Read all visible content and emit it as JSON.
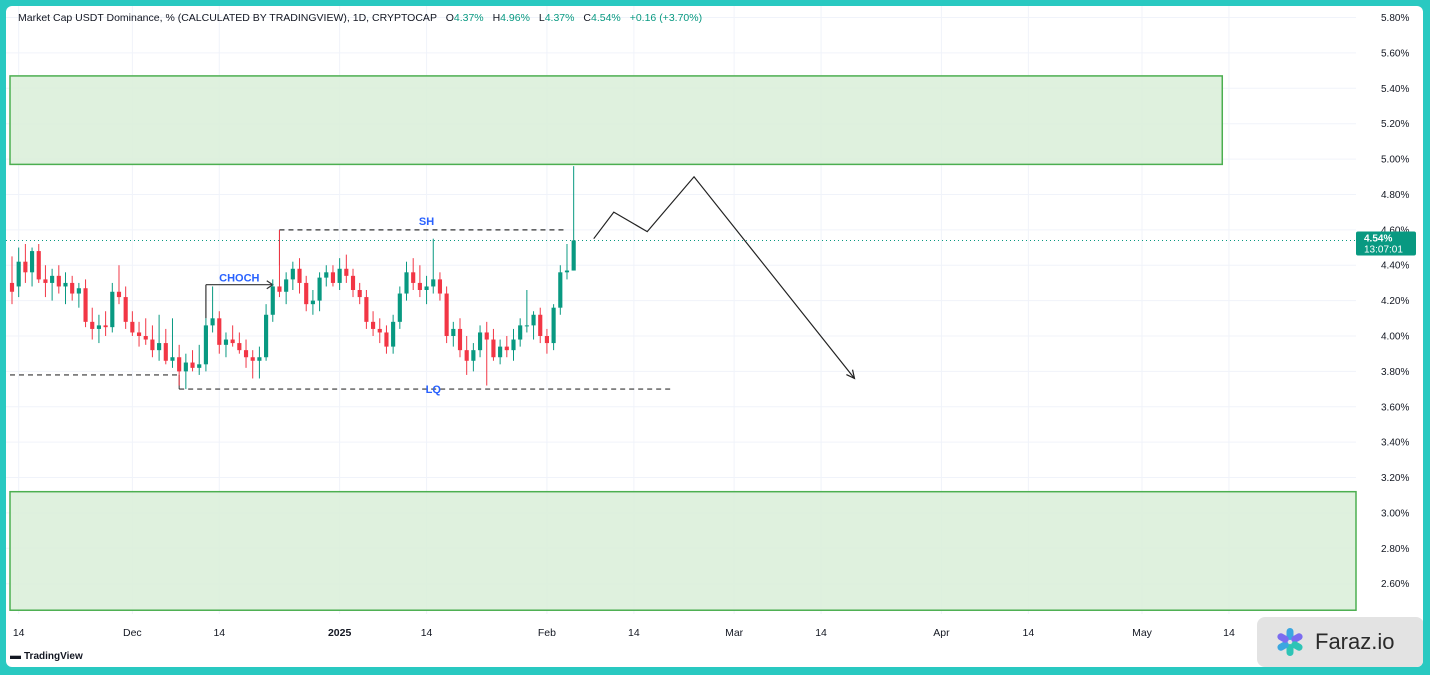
{
  "legend": {
    "symbol": "Market Cap USDT Dominance, % (CALCULATED BY TRADINGVIEW), 1D, CRYPTOCAP",
    "o_label": "O",
    "o": "4.37%",
    "h_label": "H",
    "h": "4.96%",
    "l_label": "L",
    "l": "4.37%",
    "c_label": "C",
    "c": "4.54%",
    "change": "+0.16 (+3.70%)"
  },
  "price_tag": {
    "value": "4.54%",
    "countdown": "13:07:01"
  },
  "branding": {
    "tradingview": "TradingView",
    "watermark": "Faraz.io"
  },
  "colors": {
    "up": "#089981",
    "down": "#f23645",
    "zone_fill": "#d9eed8",
    "zone_border": "#4caf50",
    "label_blue": "#2962ff"
  },
  "chart_data": {
    "type": "candlestick",
    "y_axis": {
      "min": 2.44,
      "max": 5.82,
      "unit": "%",
      "ticks": [
        "5.80%",
        "5.60%",
        "5.40%",
        "5.20%",
        "5.00%",
        "4.80%",
        "4.60%",
        "4.40%",
        "4.20%",
        "4.00%",
        "3.80%",
        "3.60%",
        "3.40%",
        "3.20%",
        "3.00%",
        "2.80%",
        "2.60%"
      ]
    },
    "x_axis": {
      "labels": [
        {
          "text": "14",
          "date": "2024-11-14"
        },
        {
          "text": "Dec",
          "date": "2024-12-01"
        },
        {
          "text": "14",
          "date": "2024-12-14"
        },
        {
          "text": "2025",
          "date": "2025-01-01"
        },
        {
          "text": "14",
          "date": "2025-01-14"
        },
        {
          "text": "Feb",
          "date": "2025-02-01"
        },
        {
          "text": "14",
          "date": "2025-02-14"
        },
        {
          "text": "Mar",
          "date": "2025-03-01"
        },
        {
          "text": "14",
          "date": "2025-03-14"
        },
        {
          "text": "Apr",
          "date": "2025-04-01"
        },
        {
          "text": "14",
          "date": "2025-04-14"
        },
        {
          "text": "May",
          "date": "2025-05-01"
        },
        {
          "text": "14",
          "date": "2025-05-14"
        }
      ],
      "start": "2024-11-13",
      "end": "2025-06-02"
    },
    "last_price": 4.54,
    "candles": [
      {
        "d": "2024-11-13",
        "o": 4.3,
        "h": 4.45,
        "l": 4.18,
        "c": 4.25
      },
      {
        "d": "2024-11-14",
        "o": 4.28,
        "h": 4.5,
        "l": 4.22,
        "c": 4.42
      },
      {
        "d": "2024-11-15",
        "o": 4.42,
        "h": 4.52,
        "l": 4.3,
        "c": 4.36
      },
      {
        "d": "2024-11-16",
        "o": 4.36,
        "h": 4.5,
        "l": 4.28,
        "c": 4.48
      },
      {
        "d": "2024-11-17",
        "o": 4.48,
        "h": 4.52,
        "l": 4.3,
        "c": 4.32
      },
      {
        "d": "2024-11-18",
        "o": 4.32,
        "h": 4.4,
        "l": 4.22,
        "c": 4.3
      },
      {
        "d": "2024-11-19",
        "o": 4.3,
        "h": 4.38,
        "l": 4.2,
        "c": 4.34
      },
      {
        "d": "2024-11-20",
        "o": 4.34,
        "h": 4.4,
        "l": 4.24,
        "c": 4.28
      },
      {
        "d": "2024-11-21",
        "o": 4.28,
        "h": 4.36,
        "l": 4.18,
        "c": 4.3
      },
      {
        "d": "2024-11-22",
        "o": 4.3,
        "h": 4.34,
        "l": 4.2,
        "c": 4.24
      },
      {
        "d": "2024-11-23",
        "o": 4.24,
        "h": 4.3,
        "l": 4.16,
        "c": 4.27
      },
      {
        "d": "2024-11-24",
        "o": 4.27,
        "h": 4.32,
        "l": 4.05,
        "c": 4.08
      },
      {
        "d": "2024-11-25",
        "o": 4.08,
        "h": 4.16,
        "l": 3.98,
        "c": 4.04
      },
      {
        "d": "2024-11-26",
        "o": 4.04,
        "h": 4.12,
        "l": 3.96,
        "c": 4.06
      },
      {
        "d": "2024-11-27",
        "o": 4.06,
        "h": 4.14,
        "l": 4.0,
        "c": 4.05
      },
      {
        "d": "2024-11-28",
        "o": 4.05,
        "h": 4.3,
        "l": 4.02,
        "c": 4.25
      },
      {
        "d": "2024-11-29",
        "o": 4.25,
        "h": 4.4,
        "l": 4.18,
        "c": 4.22
      },
      {
        "d": "2024-11-30",
        "o": 4.22,
        "h": 4.28,
        "l": 4.04,
        "c": 4.08
      },
      {
        "d": "2024-12-01",
        "o": 4.08,
        "h": 4.14,
        "l": 4.0,
        "c": 4.02
      },
      {
        "d": "2024-12-02",
        "o": 4.02,
        "h": 4.08,
        "l": 3.94,
        "c": 4.0
      },
      {
        "d": "2024-12-03",
        "o": 4.0,
        "h": 4.1,
        "l": 3.95,
        "c": 3.98
      },
      {
        "d": "2024-12-04",
        "o": 3.98,
        "h": 4.06,
        "l": 3.88,
        "c": 3.92
      },
      {
        "d": "2024-12-05",
        "o": 3.92,
        "h": 4.12,
        "l": 3.86,
        "c": 3.96
      },
      {
        "d": "2024-12-06",
        "o": 3.96,
        "h": 4.04,
        "l": 3.84,
        "c": 3.86
      },
      {
        "d": "2024-12-07",
        "o": 3.86,
        "h": 4.1,
        "l": 3.82,
        "c": 3.88
      },
      {
        "d": "2024-12-08",
        "o": 3.88,
        "h": 3.95,
        "l": 3.72,
        "c": 3.8
      },
      {
        "d": "2024-12-09",
        "o": 3.8,
        "h": 3.9,
        "l": 3.7,
        "c": 3.85
      },
      {
        "d": "2024-12-10",
        "o": 3.85,
        "h": 3.92,
        "l": 3.8,
        "c": 3.82
      },
      {
        "d": "2024-12-11",
        "o": 3.82,
        "h": 3.95,
        "l": 3.78,
        "c": 3.84
      },
      {
        "d": "2024-12-12",
        "o": 3.84,
        "h": 4.1,
        "l": 3.8,
        "c": 4.06
      },
      {
        "d": "2024-12-13",
        "o": 4.06,
        "h": 4.28,
        "l": 4.02,
        "c": 4.1
      },
      {
        "d": "2024-12-14",
        "o": 4.1,
        "h": 4.14,
        "l": 3.9,
        "c": 3.95
      },
      {
        "d": "2024-12-15",
        "o": 3.95,
        "h": 4.02,
        "l": 3.88,
        "c": 3.98
      },
      {
        "d": "2024-12-16",
        "o": 3.98,
        "h": 4.06,
        "l": 3.94,
        "c": 3.96
      },
      {
        "d": "2024-12-17",
        "o": 3.96,
        "h": 4.02,
        "l": 3.9,
        "c": 3.92
      },
      {
        "d": "2024-12-18",
        "o": 3.92,
        "h": 3.98,
        "l": 3.82,
        "c": 3.88
      },
      {
        "d": "2024-12-19",
        "o": 3.88,
        "h": 3.92,
        "l": 3.76,
        "c": 3.86
      },
      {
        "d": "2024-12-20",
        "o": 3.86,
        "h": 3.94,
        "l": 3.76,
        "c": 3.88
      },
      {
        "d": "2024-12-21",
        "o": 3.88,
        "h": 4.18,
        "l": 3.86,
        "c": 4.12
      },
      {
        "d": "2024-12-22",
        "o": 4.12,
        "h": 4.32,
        "l": 4.08,
        "c": 4.28
      },
      {
        "d": "2024-12-23",
        "o": 4.28,
        "h": 4.6,
        "l": 4.22,
        "c": 4.25
      },
      {
        "d": "2024-12-24",
        "o": 4.25,
        "h": 4.36,
        "l": 4.18,
        "c": 4.32
      },
      {
        "d": "2024-12-25",
        "o": 4.32,
        "h": 4.42,
        "l": 4.26,
        "c": 4.38
      },
      {
        "d": "2024-12-26",
        "o": 4.38,
        "h": 4.44,
        "l": 4.24,
        "c": 4.3
      },
      {
        "d": "2024-12-27",
        "o": 4.3,
        "h": 4.34,
        "l": 4.14,
        "c": 4.18
      },
      {
        "d": "2024-12-28",
        "o": 4.18,
        "h": 4.26,
        "l": 4.12,
        "c": 4.2
      },
      {
        "d": "2024-12-29",
        "o": 4.2,
        "h": 4.36,
        "l": 4.14,
        "c": 4.33
      },
      {
        "d": "2024-12-30",
        "o": 4.33,
        "h": 4.4,
        "l": 4.28,
        "c": 4.36
      },
      {
        "d": "2024-12-31",
        "o": 4.36,
        "h": 4.4,
        "l": 4.28,
        "c": 4.3
      },
      {
        "d": "2025-01-01",
        "o": 4.3,
        "h": 4.44,
        "l": 4.26,
        "c": 4.38
      },
      {
        "d": "2025-01-02",
        "o": 4.38,
        "h": 4.46,
        "l": 4.3,
        "c": 4.34
      },
      {
        "d": "2025-01-03",
        "o": 4.34,
        "h": 4.38,
        "l": 4.22,
        "c": 4.26
      },
      {
        "d": "2025-01-04",
        "o": 4.26,
        "h": 4.3,
        "l": 4.18,
        "c": 4.22
      },
      {
        "d": "2025-01-05",
        "o": 4.22,
        "h": 4.26,
        "l": 4.04,
        "c": 4.08
      },
      {
        "d": "2025-01-06",
        "o": 4.08,
        "h": 4.14,
        "l": 4.0,
        "c": 4.04
      },
      {
        "d": "2025-01-07",
        "o": 4.04,
        "h": 4.1,
        "l": 3.96,
        "c": 4.02
      },
      {
        "d": "2025-01-08",
        "o": 4.02,
        "h": 4.06,
        "l": 3.9,
        "c": 3.94
      },
      {
        "d": "2025-01-09",
        "o": 3.94,
        "h": 4.12,
        "l": 3.9,
        "c": 4.08
      },
      {
        "d": "2025-01-10",
        "o": 4.08,
        "h": 4.28,
        "l": 4.04,
        "c": 4.24
      },
      {
        "d": "2025-01-11",
        "o": 4.24,
        "h": 4.42,
        "l": 4.2,
        "c": 4.36
      },
      {
        "d": "2025-01-12",
        "o": 4.36,
        "h": 4.44,
        "l": 4.26,
        "c": 4.3
      },
      {
        "d": "2025-01-13",
        "o": 4.3,
        "h": 4.4,
        "l": 4.22,
        "c": 4.26
      },
      {
        "d": "2025-01-14",
        "o": 4.26,
        "h": 4.34,
        "l": 4.18,
        "c": 4.28
      },
      {
        "d": "2025-01-15",
        "o": 4.28,
        "h": 4.55,
        "l": 4.24,
        "c": 4.32
      },
      {
        "d": "2025-01-16",
        "o": 4.32,
        "h": 4.36,
        "l": 4.2,
        "c": 4.24
      },
      {
        "d": "2025-01-17",
        "o": 4.24,
        "h": 4.28,
        "l": 3.96,
        "c": 4.0
      },
      {
        "d": "2025-01-18",
        "o": 4.0,
        "h": 4.08,
        "l": 3.94,
        "c": 4.04
      },
      {
        "d": "2025-01-19",
        "o": 4.04,
        "h": 4.1,
        "l": 3.88,
        "c": 3.92
      },
      {
        "d": "2025-01-20",
        "o": 3.92,
        "h": 4.0,
        "l": 3.78,
        "c": 3.86
      },
      {
        "d": "2025-01-21",
        "o": 3.86,
        "h": 3.96,
        "l": 3.8,
        "c": 3.92
      },
      {
        "d": "2025-01-22",
        "o": 3.92,
        "h": 4.06,
        "l": 3.88,
        "c": 4.02
      },
      {
        "d": "2025-01-23",
        "o": 4.02,
        "h": 4.08,
        "l": 3.72,
        "c": 3.98
      },
      {
        "d": "2025-01-24",
        "o": 3.98,
        "h": 4.04,
        "l": 3.86,
        "c": 3.88
      },
      {
        "d": "2025-01-25",
        "o": 3.88,
        "h": 3.98,
        "l": 3.84,
        "c": 3.94
      },
      {
        "d": "2025-01-26",
        "o": 3.94,
        "h": 4.0,
        "l": 3.88,
        "c": 3.92
      },
      {
        "d": "2025-01-27",
        "o": 3.92,
        "h": 4.04,
        "l": 3.86,
        "c": 3.98
      },
      {
        "d": "2025-01-28",
        "o": 3.98,
        "h": 4.1,
        "l": 3.94,
        "c": 4.06
      },
      {
        "d": "2025-01-29",
        "o": 4.06,
        "h": 4.26,
        "l": 4.02,
        "c": 4.06
      },
      {
        "d": "2025-01-30",
        "o": 4.06,
        "h": 4.14,
        "l": 3.98,
        "c": 4.12
      },
      {
        "d": "2025-01-31",
        "o": 4.12,
        "h": 4.16,
        "l": 3.96,
        "c": 4.0
      },
      {
        "d": "2025-02-01",
        "o": 4.0,
        "h": 4.04,
        "l": 3.9,
        "c": 3.96
      },
      {
        "d": "2025-02-02",
        "o": 3.96,
        "h": 4.18,
        "l": 3.92,
        "c": 4.16
      },
      {
        "d": "2025-02-03",
        "o": 4.16,
        "h": 4.4,
        "l": 4.12,
        "c": 4.36
      },
      {
        "d": "2025-02-04",
        "o": 4.36,
        "h": 4.52,
        "l": 4.32,
        "c": 4.37
      },
      {
        "d": "2025-02-05",
        "o": 4.37,
        "h": 4.96,
        "l": 4.37,
        "c": 4.54
      }
    ]
  },
  "annotations": {
    "labels": [
      {
        "text": "SH",
        "color": "#2962ff",
        "date": "2025-01-14",
        "price": 4.65
      },
      {
        "text": "CHOCH",
        "color": "#2962ff",
        "date": "2024-12-17",
        "price": 4.33
      },
      {
        "text": "LQ",
        "color": "#2962ff",
        "date": "2025-01-15",
        "price": 3.7
      }
    ],
    "dashed_lines": [
      {
        "from": "2024-12-23",
        "to": "2025-02-04",
        "price": 4.6
      },
      {
        "from": "2024-11-11",
        "to": "2024-12-08",
        "price": 3.78
      },
      {
        "from": "2024-12-08",
        "to": "2025-02-20",
        "price": 3.7
      }
    ],
    "dashed_verticals": [
      {
        "date": "2024-12-23",
        "from": 4.6,
        "to": 4.4
      },
      {
        "date": "2024-12-08",
        "from": 3.78,
        "to": 3.7
      }
    ],
    "choch_arrow": {
      "from": "2024-12-12",
      "to": "2024-12-22",
      "price": 4.29,
      "vertical_from": 4.1
    },
    "projection_path": [
      {
        "date": "2025-02-08",
        "price": 4.55
      },
      {
        "date": "2025-02-11",
        "price": 4.7
      },
      {
        "date": "2025-02-16",
        "price": 4.59
      },
      {
        "date": "2025-02-23",
        "price": 4.9
      },
      {
        "date": "2025-03-19",
        "price": 3.76
      }
    ],
    "zones": [
      {
        "from": "2024-11-11",
        "to": "2025-05-13",
        "top": 5.47,
        "bottom": 4.97
      },
      {
        "from": "2024-11-11",
        "to": "2025-06-02",
        "top": 3.12,
        "bottom": 2.45
      }
    ]
  }
}
